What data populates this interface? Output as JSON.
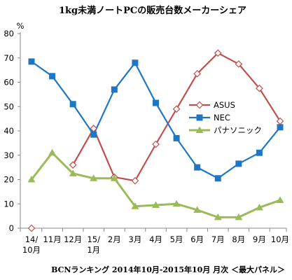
{
  "chart_data": {
    "type": "line",
    "title": "1kg未満ノートPCの販売台数メーカーシェア",
    "ylabel": "%",
    "ylim": [
      0,
      80
    ],
    "yticks": [
      0,
      10,
      20,
      30,
      40,
      50,
      60,
      70,
      80
    ],
    "categories": [
      [
        "14/",
        "10月"
      ],
      [
        "11月"
      ],
      [
        "12月"
      ],
      [
        "15/",
        "1月"
      ],
      [
        "2月"
      ],
      [
        "3月"
      ],
      [
        "4月"
      ],
      [
        "5月"
      ],
      [
        "6月"
      ],
      [
        "7月"
      ],
      [
        "8月"
      ],
      [
        "9月"
      ],
      [
        "10月"
      ]
    ],
    "series": [
      {
        "name": "ASUS",
        "color": "#c0504d",
        "marker": "diamond-open",
        "values": [
          0,
          null,
          26,
          41,
          21,
          19.5,
          34.5,
          49,
          63.5,
          72,
          67.5,
          57.5,
          44
        ]
      },
      {
        "name": "NEC",
        "color": "#1f77c4",
        "marker": "square",
        "values": [
          68.5,
          62.5,
          51,
          38.5,
          57,
          68,
          51.5,
          37,
          25,
          20.5,
          26.5,
          31,
          41.5
        ]
      },
      {
        "name": "パナソニック",
        "color": "#9bbb59",
        "marker": "triangle",
        "values": [
          20,
          31,
          22.5,
          20.5,
          20.5,
          9,
          9.5,
          10,
          7.5,
          4.5,
          4.5,
          8.5,
          11.5
        ]
      }
    ],
    "legend": "right-middle",
    "grid": false,
    "note": "BCNランキング 2014年10月-2015年10月 月次 ＜最大パネル＞"
  }
}
